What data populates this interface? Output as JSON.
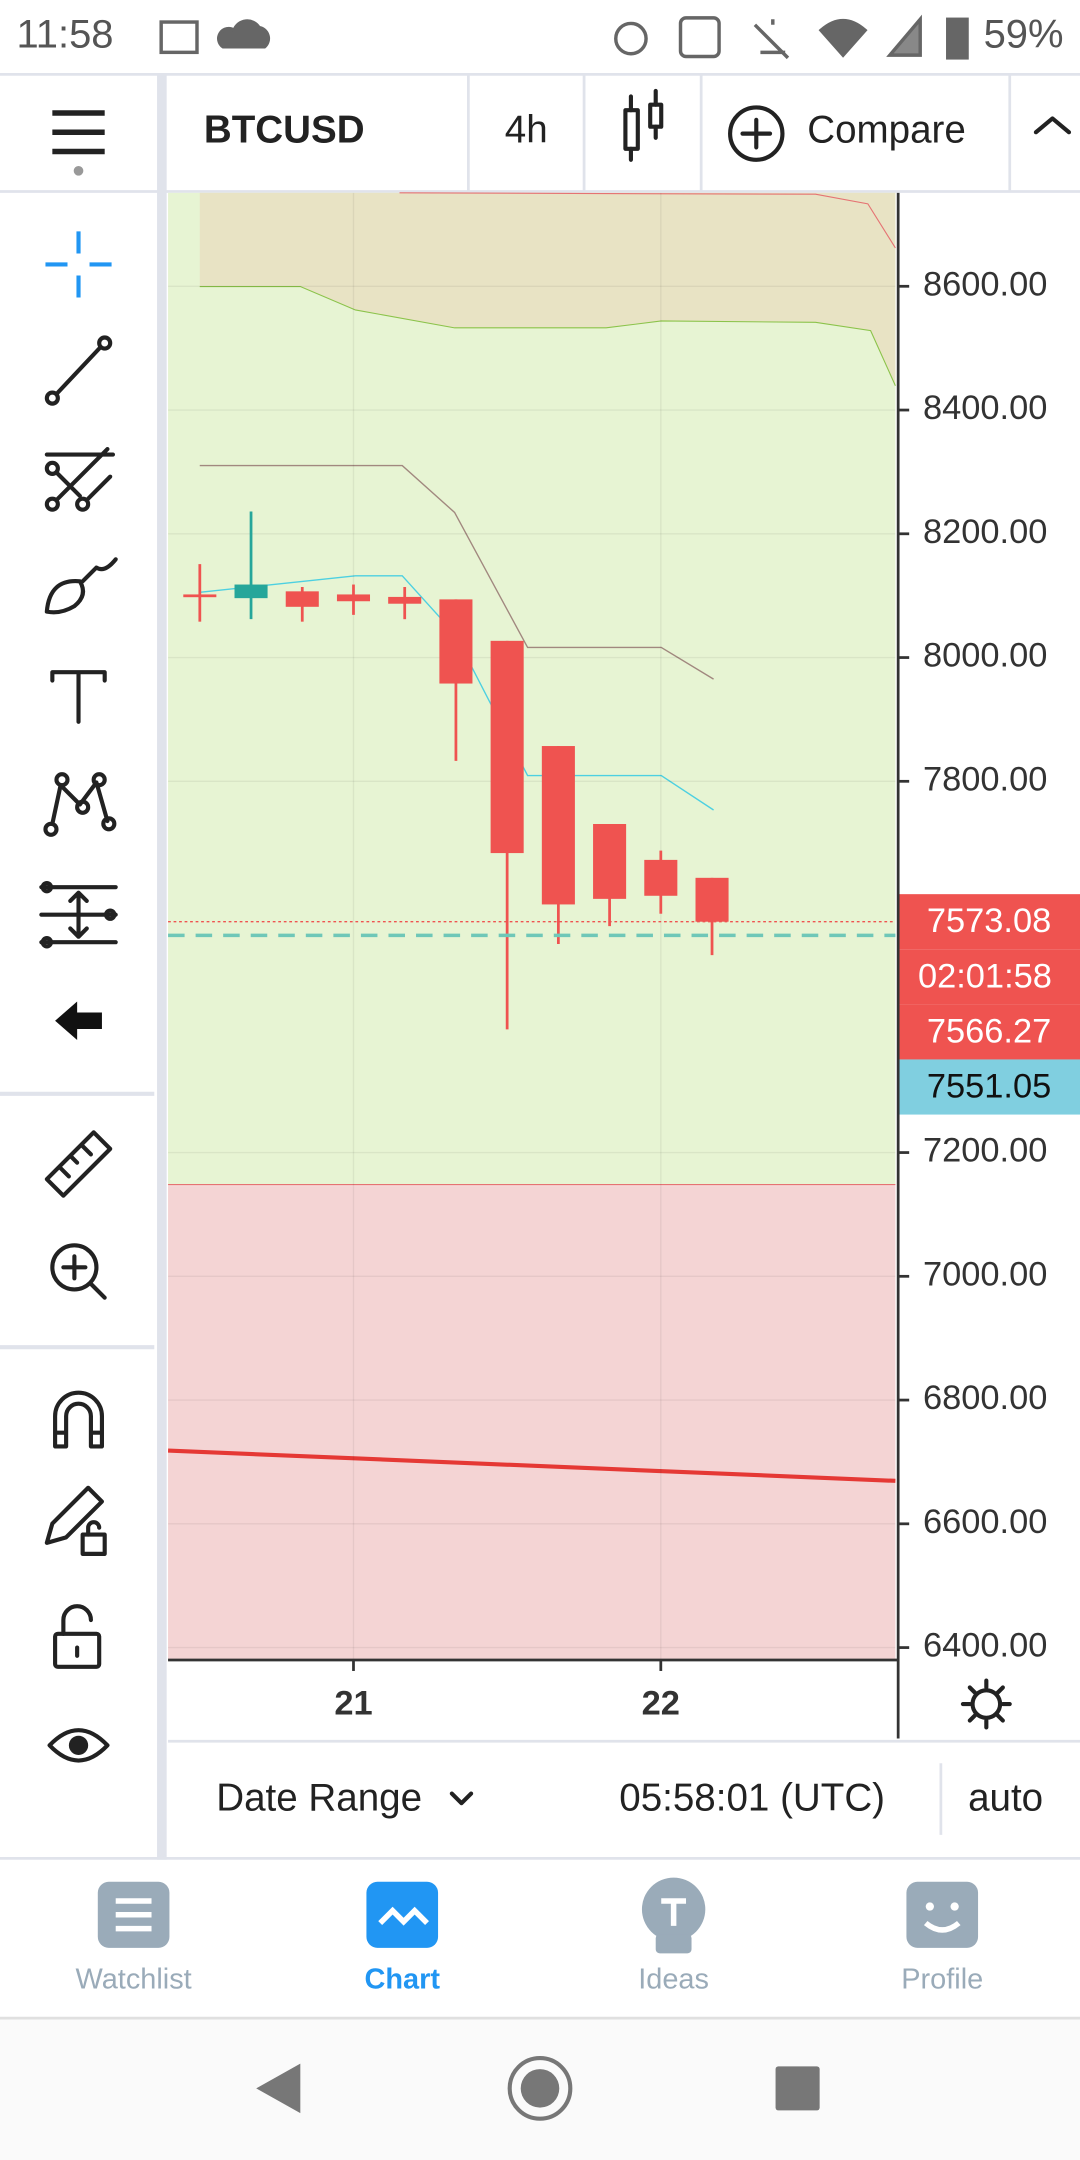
{
  "status_bar": {
    "time": "11:58",
    "battery": "59%"
  },
  "toolbar": {
    "symbol": "BTCUSD",
    "interval": "4h",
    "compare": "Compare"
  },
  "chart_data": {
    "type": "candlestick",
    "ylim": [
      6380,
      8751
    ],
    "yticks": [
      {
        "value": 6400,
        "label": "6400.00"
      },
      {
        "value": 6600,
        "label": "6600.00"
      },
      {
        "value": 6800,
        "label": "6800.00"
      },
      {
        "value": 7000,
        "label": "7000.00"
      },
      {
        "value": 7200,
        "label": "7200.00"
      },
      {
        "value": 7800,
        "label": "7800.00"
      },
      {
        "value": 8000,
        "label": "8000.00"
      },
      {
        "value": 8200,
        "label": "8200.00"
      },
      {
        "value": 8400,
        "label": "8400.00"
      },
      {
        "value": 8600,
        "label": "8600.00"
      }
    ],
    "xlim": [
      -0.62,
      13.58
    ],
    "xticks": [
      {
        "value": 3,
        "label": "21"
      },
      {
        "value": 9,
        "label": "22"
      }
    ],
    "up_color": "#26a69a",
    "down_color": "#ef5350",
    "open": [
      8102,
      8096,
      8107,
      8102,
      8098,
      8094,
      8027,
      7857,
      7731,
      7673,
      7644
    ],
    "high": [
      8151,
      8236,
      8114,
      8118,
      8114,
      8094,
      8027,
      7857,
      7731,
      7688,
      7644
    ],
    "low": [
      8058,
      8062,
      8058,
      8069,
      8062,
      7833,
      7399,
      7537,
      7566,
      7586,
      7519
    ],
    "close": [
      8100,
      8118,
      8082,
      8091,
      8087,
      7958,
      7684,
      7601,
      7610,
      7615,
      7573.08
    ],
    "price_labels": [
      {
        "value": 7573.08,
        "label": "7573.08",
        "color": "#ef5350"
      },
      {
        "value": 7566.27,
        "label": "7566.27",
        "color": "#ef5350"
      },
      {
        "value": 7551.05,
        "label": "7551.05",
        "color": "#80cfe0"
      }
    ]
  },
  "countdown": "02:01:58",
  "footer": {
    "date_range": "Date Range",
    "time": "05:58:01 (UTC)",
    "scale": "auto"
  },
  "nav": [
    "Watchlist",
    "Chart",
    "Ideas",
    "Profile"
  ]
}
